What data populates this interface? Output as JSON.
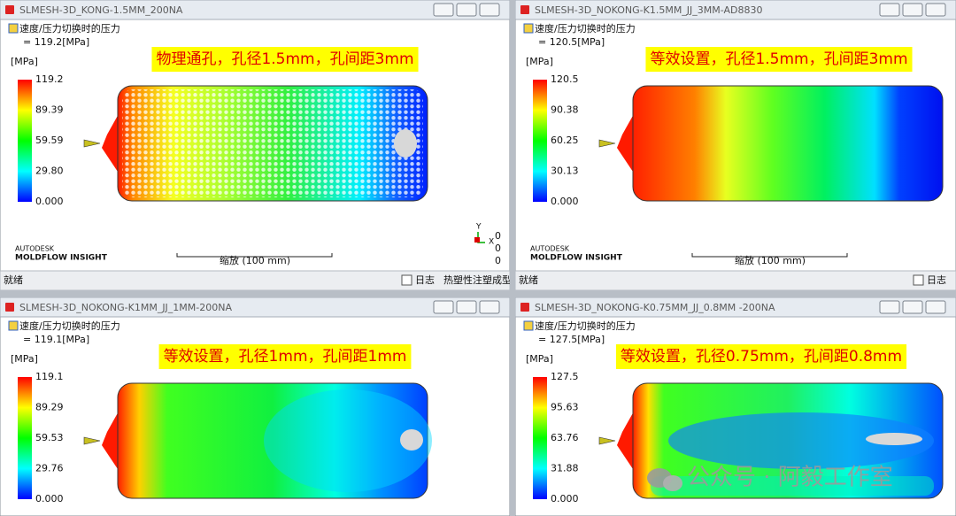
{
  "panels": [
    {
      "title": "SLMESH-3D_KONG-1.5MM_200NA",
      "result": "速度/压力切换时的压力",
      "value_line": "= 119.2[MPa]",
      "unit": "[MPa]",
      "legend": [
        "119.2",
        "89.39",
        "59.59",
        "29.80",
        "0.000"
      ],
      "banner": "物理通孔，孔径1.5mm，孔间距3mm",
      "logo": [
        "AUTODESK",
        "MOLDFLOW INSIGHT"
      ],
      "scale": "缩放 (100 mm)",
      "axes": {
        "y": "Y",
        "x": "X",
        "values": [
          "0",
          "0",
          "0"
        ]
      },
      "status": {
        "left": "就绪",
        "log": "日志",
        "mode": "热塑性注塑成型"
      }
    },
    {
      "title": "SLMESH-3D_NOKONG-K1.5MM_JJ_3MM-AD8830",
      "result": "速度/压力切换时的压力",
      "value_line": "= 120.5[MPa]",
      "unit": "[MPa]",
      "legend": [
        "120.5",
        "90.38",
        "60.25",
        "30.13",
        "0.000"
      ],
      "banner": "等效设置，孔径1.5mm，孔间距3mm",
      "logo": [
        "AUTODESK",
        "MOLDFLOW INSIGHT"
      ],
      "scale": "缩放 (100 mm)",
      "status": {
        "left": "就绪",
        "log": "日志"
      }
    },
    {
      "title": "SLMESH-3D_NOKONG-K1MM_JJ_1MM-200NA",
      "result": "速度/压力切换时的压力",
      "value_line": "= 119.1[MPa]",
      "unit": "[MPa]",
      "legend": [
        "119.1",
        "89.29",
        "59.53",
        "29.76",
        "0.000"
      ],
      "banner": "等效设置，孔径1mm，孔间距1mm"
    },
    {
      "title": "SLMESH-3D_NOKONG-K0.75MM_JJ_0.8MM -200NA",
      "result": "速度/压力切换时的压力",
      "value_line": "= 127.5[MPa]",
      "unit": "[MPa]",
      "legend": [
        "127.5",
        "95.63",
        "63.76",
        "31.88",
        "0.000"
      ],
      "banner": "等效设置，孔径0.75mm，孔间距0.8mm"
    }
  ],
  "watermark": "公众号 · 阿毅工作室"
}
